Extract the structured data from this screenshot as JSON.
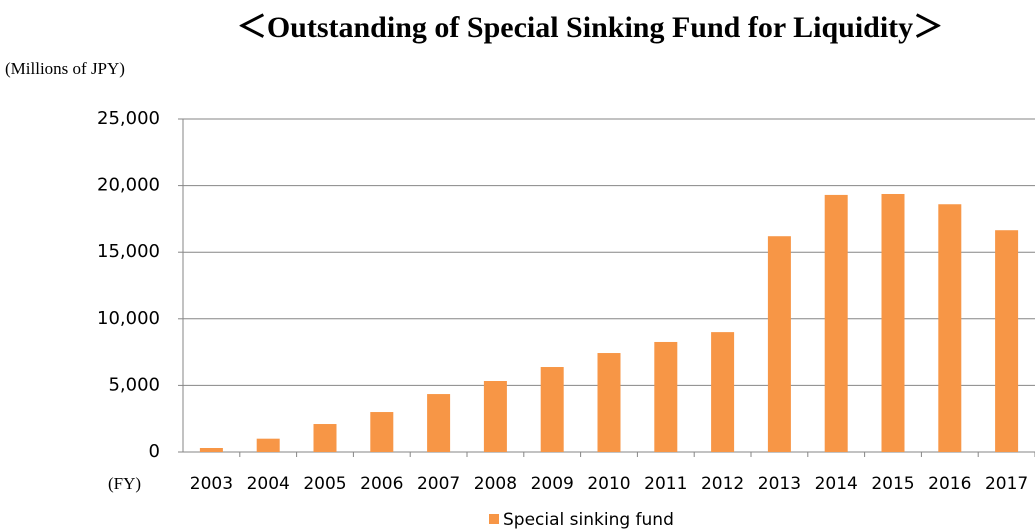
{
  "chart_data": {
    "type": "bar",
    "title": "＜Outstanding of Special Sinking Fund for Liquidity＞",
    "y_axis_label": "(Millions of JPY)",
    "x_axis_label": "(FY)",
    "categories": [
      "2003",
      "2004",
      "2005",
      "2006",
      "2007",
      "2008",
      "2009",
      "2010",
      "2011",
      "2012",
      "2013",
      "2014",
      "2015",
      "2016",
      "2017"
    ],
    "series": [
      {
        "name": "Special sinking fund",
        "color": "#f79646",
        "values": [
          300,
          1000,
          2100,
          3000,
          4350,
          5330,
          6380,
          7430,
          8260,
          9000,
          16200,
          19300,
          19370,
          18600,
          16650
        ]
      }
    ],
    "ylim": [
      0,
      25000
    ],
    "yticks": [
      0,
      {
        "value": 5000,
        "label": "5,000"
      },
      {
        "value": 10000,
        "label": "10,000"
      },
      {
        "value": 15000,
        "label": "15,000"
      },
      {
        "value": 20000,
        "label": "20,000"
      },
      {
        "value": 25000,
        "label": "25,000"
      }
    ],
    "grid": true,
    "legend": "bottom"
  }
}
